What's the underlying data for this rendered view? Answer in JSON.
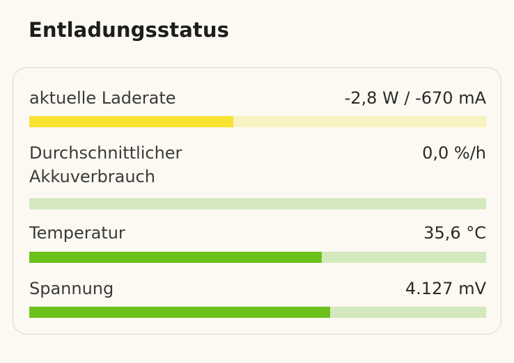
{
  "section": {
    "title": "Entladungsstatus"
  },
  "metrics": [
    {
      "label": "aktuelle Laderate",
      "value": "-2,8 W / -670 mA",
      "fill_fraction": 0.446,
      "fill_color": "#f7e232",
      "track_color": "#f8f2c0"
    },
    {
      "label": "Durchschnittlicher\nAkkuverbrauch",
      "value": "0,0 %/h",
      "fill_fraction": 0.0,
      "fill_color": "#6cc01c",
      "track_color": "#d3e9bd"
    },
    {
      "label": "Temperatur",
      "value": "35,6 °C",
      "fill_fraction": 0.64,
      "fill_color": "#6cc01c",
      "track_color": "#d3e9bd"
    },
    {
      "label": "Spannung",
      "value": "4.127 mV",
      "fill_fraction": 0.659,
      "fill_color": "#6cc01c",
      "track_color": "#d3e9bd"
    }
  ]
}
